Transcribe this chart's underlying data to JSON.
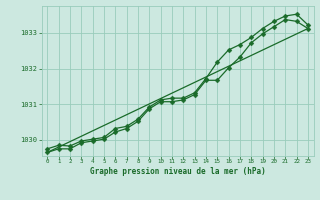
{
  "title": "Graphe pression niveau de la mer (hPa)",
  "bg_color": "#cce8e0",
  "plot_bg_color": "#cce8e0",
  "grid_color": "#99ccbb",
  "line_color": "#1a6b2a",
  "xlim": [
    -0.5,
    23.5
  ],
  "ylim": [
    1029.55,
    1033.75
  ],
  "yticks": [
    1030,
    1031,
    1032,
    1033
  ],
  "xticks": [
    0,
    1,
    2,
    3,
    4,
    5,
    6,
    7,
    8,
    9,
    10,
    11,
    12,
    13,
    14,
    15,
    16,
    17,
    18,
    19,
    20,
    21,
    22,
    23
  ],
  "series1_x": [
    0,
    1,
    2,
    3,
    4,
    5,
    6,
    7,
    8,
    9,
    10,
    11,
    12,
    13,
    14,
    15,
    16,
    17,
    18,
    19,
    20,
    21,
    22,
    23
  ],
  "series1_y": [
    1029.75,
    1029.85,
    1029.83,
    1029.97,
    1030.02,
    1030.07,
    1030.32,
    1030.38,
    1030.58,
    1030.92,
    1031.12,
    1031.17,
    1031.17,
    1031.32,
    1031.72,
    1032.18,
    1032.52,
    1032.67,
    1032.87,
    1033.12,
    1033.32,
    1033.47,
    1033.52,
    1033.22
  ],
  "series2_x": [
    0,
    1,
    2,
    3,
    4,
    5,
    6,
    7,
    8,
    9,
    10,
    11,
    12,
    13,
    14,
    15,
    16,
    17,
    18,
    19,
    20,
    21,
    22,
    23
  ],
  "series2_y": [
    1029.65,
    1029.75,
    1029.75,
    1029.92,
    1029.97,
    1030.02,
    1030.22,
    1030.32,
    1030.52,
    1030.87,
    1031.07,
    1031.07,
    1031.12,
    1031.27,
    1031.67,
    1031.67,
    1032.02,
    1032.32,
    1032.72,
    1032.97,
    1033.17,
    1033.37,
    1033.32,
    1033.12
  ],
  "series3_x": [
    0,
    23
  ],
  "series3_y": [
    1029.65,
    1033.12
  ],
  "marker": "D",
  "marker_size": 2.5,
  "linewidth": 0.9
}
